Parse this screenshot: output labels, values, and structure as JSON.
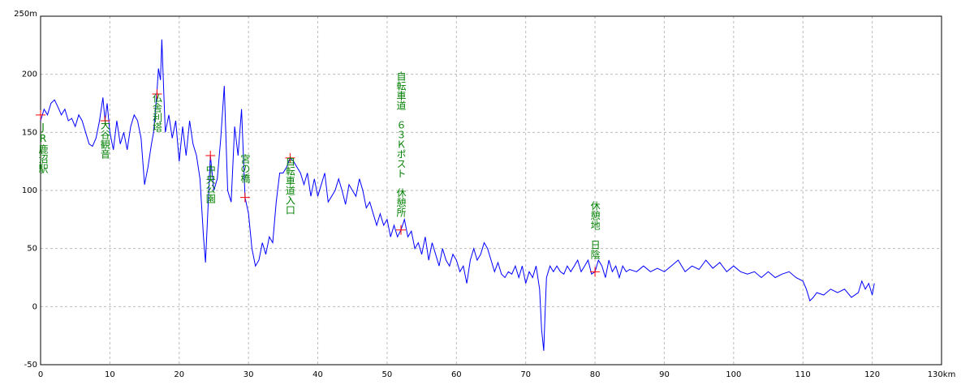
{
  "chart_data": {
    "type": "line",
    "xlim": [
      0,
      130
    ],
    "ylim": [
      -50,
      250
    ],
    "xticks": [
      0,
      10,
      20,
      30,
      40,
      50,
      60,
      70,
      80,
      90,
      100,
      110,
      120,
      {
        "value": 130,
        "label": "130km"
      }
    ],
    "yticks": [
      -50,
      0,
      50,
      100,
      150,
      200,
      {
        "value": 250,
        "label": "250m"
      }
    ],
    "grid": true,
    "series": [
      {
        "color": "#0000ff",
        "x": [
          0,
          0.5,
          1,
          1.5,
          2,
          2.5,
          3,
          3.5,
          4,
          4.5,
          5,
          5.5,
          6,
          6.5,
          7,
          7.5,
          8,
          8.5,
          9,
          9.3,
          9.6,
          10,
          10.5,
          11,
          11.5,
          12,
          12.5,
          13,
          13.5,
          14,
          14.5,
          15,
          15.5,
          16,
          16.3,
          16.8,
          17,
          17.3,
          17.5,
          17.8,
          18,
          18.5,
          19,
          19.5,
          20,
          20.5,
          21,
          21.5,
          22,
          22.5,
          23,
          23.5,
          23.8,
          24.2,
          24.5,
          25,
          25.5,
          26,
          26.5,
          27,
          27.5,
          28,
          28.5,
          29,
          29.5,
          30,
          30.5,
          31,
          31.5,
          32,
          32.5,
          33,
          33.5,
          34,
          34.5,
          35,
          35.5,
          36,
          36.5,
          37,
          37.5,
          38,
          38.5,
          39,
          39.5,
          40,
          40.5,
          41,
          41.5,
          42,
          42.5,
          43,
          43.5,
          44,
          44.5,
          45,
          45.5,
          46,
          46.5,
          47,
          47.5,
          48,
          48.5,
          49,
          49.5,
          50,
          50.5,
          51,
          51.5,
          52,
          52.5,
          53,
          53.5,
          54,
          54.5,
          55,
          55.5,
          56,
          56.5,
          57,
          57.5,
          58,
          58.5,
          59,
          59.5,
          60,
          60.5,
          61,
          61.5,
          62,
          62.5,
          63,
          63.5,
          64,
          64.5,
          65,
          65.5,
          66,
          66.5,
          67,
          67.5,
          68,
          68.5,
          69,
          69.5,
          70,
          70.5,
          71,
          71.5,
          72,
          72.3,
          72.6,
          72.8,
          73,
          73.5,
          74,
          74.5,
          75,
          75.5,
          76,
          76.5,
          77,
          77.5,
          78,
          78.5,
          79,
          79.5,
          80,
          80.5,
          81,
          81.5,
          82,
          82.5,
          83,
          83.5,
          84,
          84.5,
          85,
          86,
          87,
          88,
          89,
          90,
          91,
          92,
          93,
          94,
          95,
          96,
          97,
          98,
          99,
          100,
          101,
          102,
          103,
          104,
          105,
          106,
          107,
          108,
          109,
          110,
          110.5,
          111,
          111.5,
          112,
          113,
          114,
          115,
          116,
          117,
          118,
          118.5,
          119,
          119.5,
          120,
          120.3
        ],
        "values": [
          160,
          170,
          165,
          175,
          178,
          172,
          165,
          170,
          160,
          162,
          155,
          165,
          160,
          150,
          140,
          138,
          145,
          160,
          180,
          160,
          175,
          150,
          135,
          160,
          140,
          150,
          135,
          155,
          165,
          160,
          145,
          105,
          120,
          140,
          150,
          185,
          205,
          195,
          230,
          180,
          150,
          165,
          145,
          160,
          125,
          155,
          130,
          160,
          140,
          130,
          110,
          60,
          38,
          90,
          130,
          100,
          110,
          145,
          190,
          100,
          90,
          155,
          130,
          170,
          94,
          80,
          50,
          35,
          40,
          55,
          45,
          60,
          55,
          90,
          115,
          115,
          120,
          128,
          125,
          120,
          115,
          105,
          115,
          95,
          110,
          95,
          105,
          115,
          90,
          95,
          100,
          110,
          100,
          88,
          105,
          100,
          95,
          110,
          100,
          85,
          90,
          80,
          70,
          80,
          70,
          75,
          60,
          70,
          60,
          66,
          75,
          60,
          65,
          50,
          55,
          45,
          60,
          40,
          55,
          45,
          35,
          50,
          40,
          35,
          45,
          40,
          30,
          35,
          20,
          40,
          50,
          40,
          45,
          55,
          50,
          40,
          30,
          38,
          28,
          25,
          30,
          28,
          35,
          25,
          35,
          20,
          30,
          25,
          35,
          15,
          -20,
          -38,
          -5,
          25,
          35,
          30,
          35,
          30,
          28,
          35,
          30,
          35,
          40,
          30,
          35,
          40,
          28,
          30,
          40,
          35,
          25,
          40,
          30,
          35,
          25,
          35,
          30,
          32,
          30,
          35,
          30,
          33,
          30,
          35,
          40,
          30,
          35,
          32,
          40,
          33,
          38,
          30,
          35,
          30,
          28,
          30,
          25,
          30,
          25,
          28,
          30,
          25,
          22,
          15,
          5,
          8,
          12,
          10,
          15,
          12,
          15,
          8,
          12,
          22,
          15,
          20,
          10,
          20
        ]
      }
    ],
    "points": [
      {
        "name": "JR鹿沼駅",
        "x": 0,
        "y": 165
      },
      {
        "name": "大谷観音",
        "x": 9.3,
        "y": 160
      },
      {
        "name": "仏舎利塔",
        "x": 16.8,
        "y": 183
      },
      {
        "name": "中央公園",
        "x": 24.5,
        "y": 130
      },
      {
        "name": "宮の橋",
        "x": 29.5,
        "y": 94
      },
      {
        "name": "自転車道入口",
        "x": 36,
        "y": 128
      },
      {
        "name": "自転車道　６３Ｋポスト　休憩所",
        "x": 52,
        "y": 66
      },
      {
        "name": "休憩地　日陰",
        "x": 80,
        "y": 30
      }
    ]
  }
}
